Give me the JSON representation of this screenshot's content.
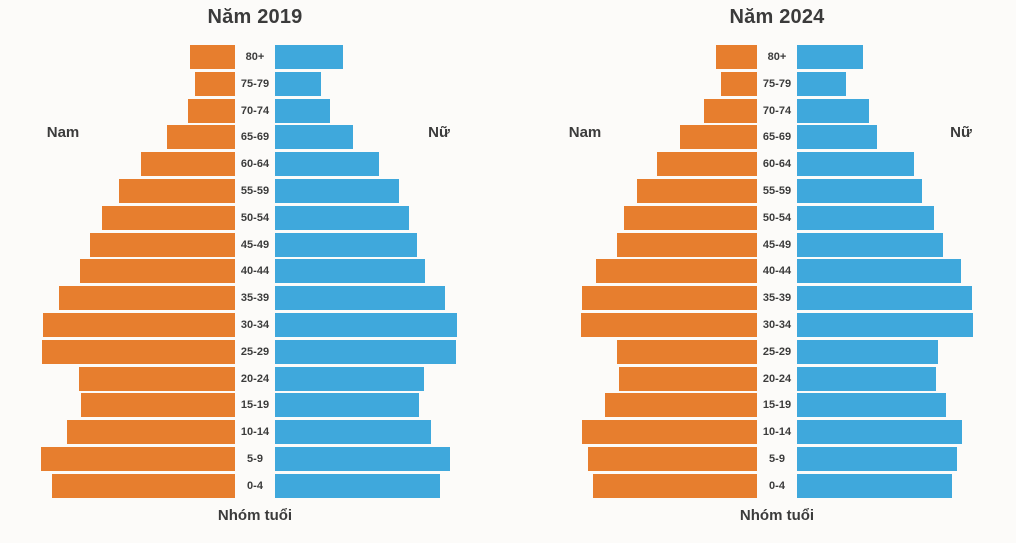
{
  "colors": {
    "background": "#fcfbf9",
    "male": "#E77E2E",
    "female": "#3FA8DC",
    "text": "#3b3b3b"
  },
  "age_groups": [
    "80+",
    "75-79",
    "70-74",
    "65-69",
    "60-64",
    "55-59",
    "50-54",
    "45-49",
    "40-44",
    "35-39",
    "30-34",
    "25-29",
    "20-24",
    "15-19",
    "10-14",
    "5-9",
    "0-4"
  ],
  "pyramids": [
    {
      "title": "Năm 2019",
      "left_label": "Nam",
      "right_label": "Nữ",
      "xlabel": "Nhóm tuổi"
    },
    {
      "title": "Năm 2024",
      "left_label": "Nam",
      "right_label": "Nữ",
      "xlabel": "Nhóm tuổi"
    }
  ],
  "chart_data": [
    {
      "type": "bar",
      "subtype": "population_pyramid",
      "orientation": "horizontal",
      "title": "Năm 2019",
      "xlabel": "Nhóm tuổi",
      "categories": [
        "80+",
        "75-79",
        "70-74",
        "65-69",
        "60-64",
        "55-59",
        "50-54",
        "45-49",
        "40-44",
        "35-39",
        "30-34",
        "25-29",
        "20-24",
        "15-19",
        "10-14",
        "5-9",
        "0-4"
      ],
      "series": [
        {
          "name": "Nam",
          "side": "left",
          "color": "#E77E2E",
          "values": [
            45,
            40,
            47,
            68,
            94,
            116,
            133,
            145,
            155,
            176,
            192,
            193,
            156,
            154,
            168,
            194,
            183
          ]
        },
        {
          "name": "Nữ",
          "side": "right",
          "color": "#3FA8DC",
          "values": [
            68,
            46,
            55,
            78,
            104,
            124,
            134,
            142,
            150,
            170,
            182,
            181,
            149,
            144,
            156,
            175,
            165
          ]
        }
      ],
      "value_unit": "relative bar length in screenshot px (no numeric value axis shown)",
      "grid": false,
      "legend": "side labels: Nam (left, orange), Nữ (right, blue)"
    },
    {
      "type": "bar",
      "subtype": "population_pyramid",
      "orientation": "horizontal",
      "title": "Năm 2024",
      "xlabel": "Nhóm tuổi",
      "categories": [
        "80+",
        "75-79",
        "70-74",
        "65-69",
        "60-64",
        "55-59",
        "50-54",
        "45-49",
        "40-44",
        "35-39",
        "30-34",
        "25-29",
        "20-24",
        "15-19",
        "10-14",
        "5-9",
        "0-4"
      ],
      "series": [
        {
          "name": "Nam",
          "side": "left",
          "color": "#E77E2E",
          "values": [
            41,
            36,
            53,
            77,
            100,
            120,
            133,
            140,
            161,
            175,
            176,
            140,
            138,
            152,
            175,
            169,
            164
          ]
        },
        {
          "name": "Nữ",
          "side": "right",
          "color": "#3FA8DC",
          "values": [
            66,
            49,
            72,
            80,
            117,
            125,
            137,
            146,
            164,
            175,
            176,
            141,
            139,
            149,
            165,
            160,
            155
          ]
        }
      ],
      "value_unit": "relative bar length in screenshot px (no numeric value axis shown)",
      "grid": false,
      "legend": "side labels: Nam (left, orange), Nữ (right, blue)"
    }
  ]
}
